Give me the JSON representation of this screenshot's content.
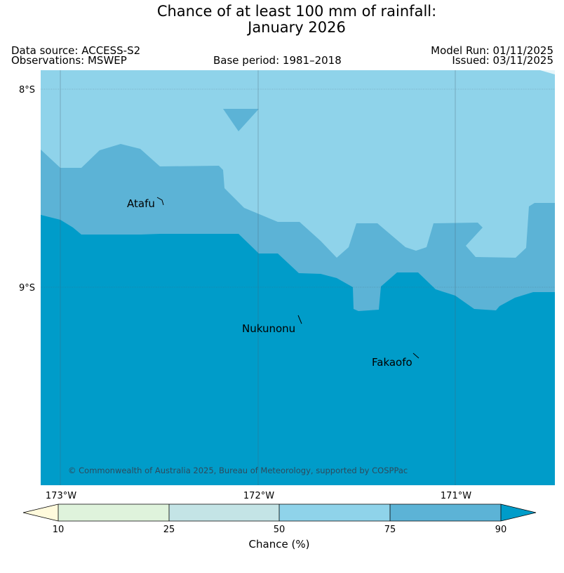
{
  "title_line1": "Chance of at least 100 mm of rainfall:",
  "title_line2": "January 2026",
  "data_source": "Data source: ACCESS-S2",
  "observations": "Observations: MSWEP",
  "base_period": "Base period: 1981–2018",
  "model_run": "Model Run: 01/11/2025",
  "issued": "Issued: 03/11/2025",
  "map": {
    "lat_labels": [
      "8°S",
      "9°S"
    ],
    "lon_labels": [
      "173°W",
      "172°W",
      "171°W"
    ],
    "places": [
      "Atafu",
      "Nukunonu",
      "Fakaofo"
    ],
    "copyright": "© Commonwealth of Australia 2025, Bureau of Meteorology, supported by COSPPac"
  },
  "colorbar": {
    "ticks": [
      "10",
      "25",
      "50",
      "75",
      "90"
    ],
    "label": "Chance (%)",
    "colors": [
      "#fffadc",
      "#dff3dc",
      "#c4e4e6",
      "#8fd3ea",
      "#5cb3d6",
      "#009cc9"
    ]
  },
  "zone_colors": {
    "c50_75": "#8fd3ea",
    "c75_90": "#5cb3d6",
    "c90_plus": "#009cc9"
  }
}
